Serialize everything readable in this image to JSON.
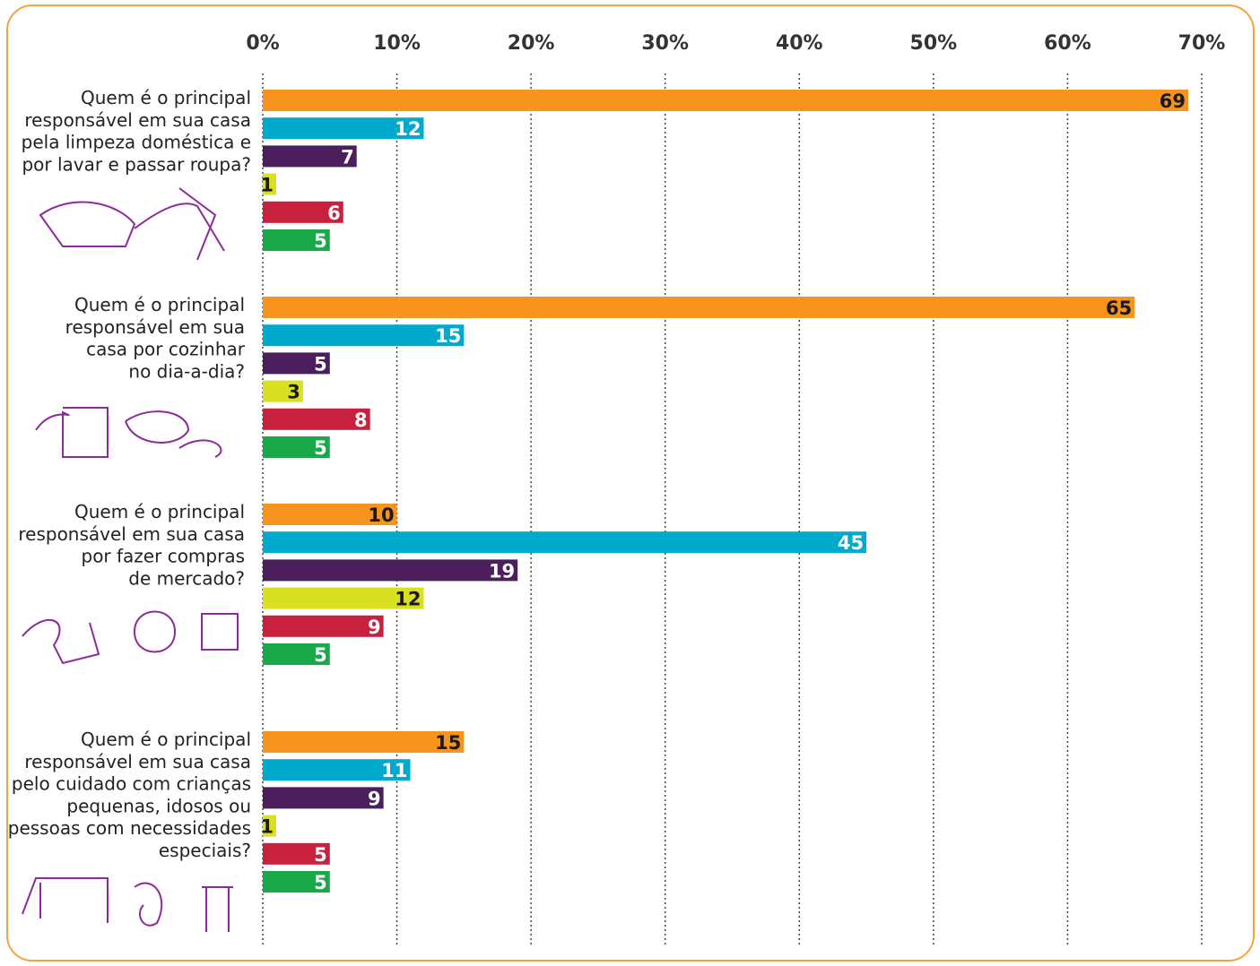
{
  "chart_data": {
    "type": "bar",
    "orientation": "horizontal",
    "categories": [
      [
        "Quem é o principal",
        "responsável em sua casa",
        "pela limpeza doméstica e",
        "por lavar e passar roupa?"
      ],
      [
        "Quem é o principal",
        "responsável em sua",
        "casa por cozinhar",
        "no dia-a-dia?"
      ],
      [
        "Quem é o principal",
        "responsável em sua casa",
        "por fazer compras",
        "de mercado?"
      ],
      [
        "Quem é o principal",
        "responsável em sua casa",
        "pelo cuidado com crianças",
        "pequenas, idosos ou",
        "pessoas com necessidades",
        "especiais?"
      ]
    ],
    "series": [
      {
        "color": "#f7941d",
        "values": [
          69,
          65,
          10,
          15
        ]
      },
      {
        "color": "#00aacc",
        "values": [
          12,
          15,
          45,
          11
        ]
      },
      {
        "color": "#4a1f5c",
        "values": [
          7,
          5,
          19,
          9
        ]
      },
      {
        "color": "#d9e021",
        "values": [
          1,
          3,
          12,
          1
        ]
      },
      {
        "color": "#c8203f",
        "values": [
          6,
          8,
          9,
          5
        ]
      },
      {
        "color": "#19a94b",
        "values": [
          5,
          5,
          5,
          5
        ]
      }
    ],
    "xlim": [
      0,
      70
    ],
    "xticks": [
      {
        "value": 0,
        "label": "0%"
      },
      {
        "value": 10,
        "label": "10%"
      },
      {
        "value": 20,
        "label": "20%"
      },
      {
        "value": 30,
        "label": "30%"
      },
      {
        "value": 40,
        "label": "40%"
      },
      {
        "value": 50,
        "label": "50%"
      },
      {
        "value": 60,
        "label": "60%"
      },
      {
        "value": 70,
        "label": "70%"
      }
    ],
    "grid": true
  }
}
